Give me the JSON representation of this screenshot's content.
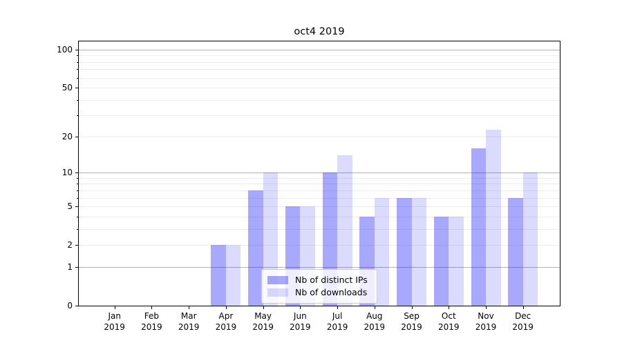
{
  "chart_data": {
    "type": "bar",
    "title": "oct4 2019",
    "categories": [
      "Jan 2019",
      "Feb 2019",
      "Mar 2019",
      "Apr 2019",
      "May 2019",
      "Jun 2019",
      "Jul 2019",
      "Aug 2019",
      "Sep 2019",
      "Oct 2019",
      "Nov 2019",
      "Dec 2019"
    ],
    "series": [
      {
        "name": "Nb of distinct IPs",
        "color": "rgba(0,0,255,0.34)",
        "values": [
          0,
          0,
          0,
          2,
          7,
          5,
          10,
          4,
          6,
          4,
          16,
          6
        ]
      },
      {
        "name": "Nb of downloads",
        "color": "rgba(0,0,255,0.14)",
        "values": [
          0,
          0,
          0,
          2,
          10,
          5,
          14,
          6,
          6,
          4,
          23,
          10
        ]
      }
    ],
    "yaxis": {
      "scale": "log1p",
      "tick_values": [
        0,
        1,
        2,
        5,
        10,
        20,
        50,
        100
      ],
      "tick_labels": [
        "0",
        "1",
        "2",
        "5",
        "10",
        "20",
        "50",
        "100"
      ],
      "major_gridlines": [
        1,
        10,
        100
      ],
      "minor_gridlines": [
        2,
        3,
        4,
        5,
        6,
        7,
        8,
        9,
        20,
        30,
        40,
        50,
        60,
        70,
        80,
        90
      ],
      "ylim": [
        0,
        115
      ]
    },
    "xaxis": {
      "tick_labels_two_lines": true
    },
    "legend": {
      "position": "lower center"
    },
    "grid": true,
    "colors": {
      "bar_dark": "rgba(0,0,255,0.34)",
      "bar_light": "rgba(0,0,255,0.14)",
      "major_grid": "#b3b3b3",
      "minor_grid": "#ececec",
      "spine": "#000000",
      "legend_border": "#cccccc",
      "legend_bg": "rgba(255,255,255,0.8)",
      "background": "#ffffff",
      "text": "#000000"
    }
  }
}
